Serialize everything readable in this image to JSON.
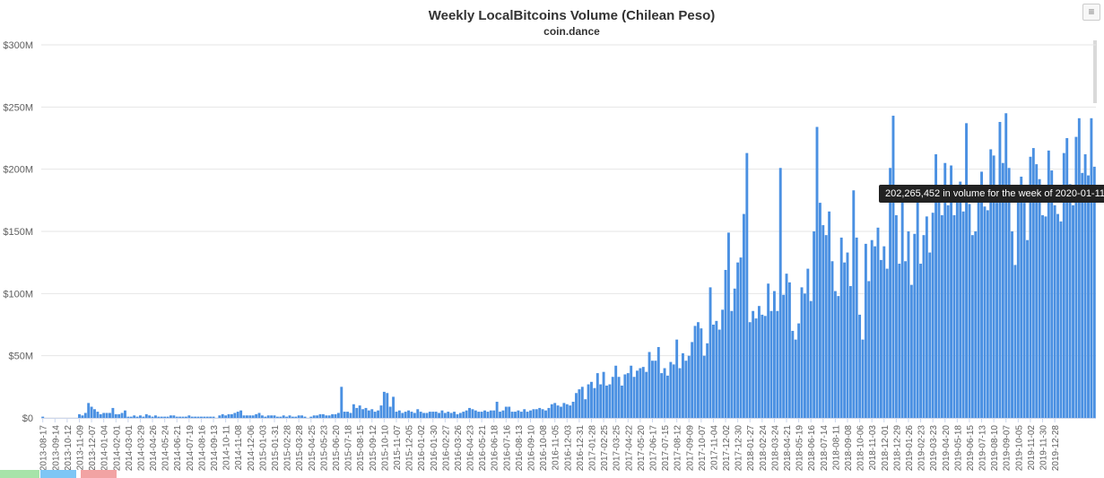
{
  "header": {
    "title": "Weekly LocalBitcoins Volume (Chilean Peso)",
    "subtitle": "coin.dance",
    "menu_glyph": "≡"
  },
  "tooltip": {
    "text": "202,265,452 in volume for the week of 2020-01-11"
  },
  "colors": {
    "bar": "#4a90e2",
    "grid": "#e6e6e6",
    "axis_text": "#606060",
    "tooltip_bg": "#222222",
    "legend_green": "#a7e3a9",
    "legend_blue": "#7ec6f5",
    "legend_red": "#f2a3a3"
  },
  "chart_data": {
    "type": "bar",
    "title": "Weekly LocalBitcoins Volume (Chilean Peso)",
    "subtitle": "coin.dance",
    "xlabel": "",
    "ylabel": "",
    "ylim": [
      0,
      300000000
    ],
    "y_ticks": [
      "$0",
      "$50M",
      "$100M",
      "$150M",
      "$200M",
      "$250M",
      "$300M"
    ],
    "grid": true,
    "week_step_days": 7,
    "x_tick_labels": [
      "2013-08-17",
      "2013-09-14",
      "2013-10-12",
      "2013-11-09",
      "2013-12-07",
      "2014-01-04",
      "2014-02-01",
      "2014-03-01",
      "2014-03-29",
      "2014-04-26",
      "2014-05-24",
      "2014-06-21",
      "2014-07-19",
      "2014-08-16",
      "2014-09-13",
      "2014-10-11",
      "2014-11-08",
      "2014-12-06",
      "2015-01-03",
      "2015-01-31",
      "2015-02-28",
      "2015-03-28",
      "2015-04-25",
      "2015-05-23",
      "2015-06-20",
      "2015-07-18",
      "2015-08-15",
      "2015-09-12",
      "2015-10-10",
      "2015-11-07",
      "2015-12-05",
      "2016-01-02",
      "2016-01-30",
      "2016-02-27",
      "2016-03-26",
      "2016-04-23",
      "2016-05-21",
      "2016-06-18",
      "2016-07-16",
      "2016-08-13",
      "2016-09-10",
      "2016-10-08",
      "2016-11-05",
      "2016-12-03",
      "2016-12-31",
      "2017-01-28",
      "2017-02-25",
      "2017-03-25",
      "2017-04-22",
      "2017-05-20",
      "2017-06-17",
      "2017-07-15",
      "2017-08-12",
      "2017-09-09",
      "2017-10-07",
      "2017-11-04",
      "2017-12-02",
      "2017-12-30",
      "2018-01-27",
      "2018-02-24",
      "2018-03-24",
      "2018-04-21",
      "2018-05-19",
      "2018-06-16",
      "2018-07-14",
      "2018-08-11",
      "2018-09-08",
      "2018-10-06",
      "2018-11-03",
      "2018-12-01",
      "2018-12-29",
      "2019-01-26",
      "2019-02-23",
      "2019-03-23",
      "2019-04-20",
      "2019-05-18",
      "2019-06-15",
      "2019-07-13",
      "2019-08-10",
      "2019-09-07",
      "2019-10-05",
      "2019-11-02",
      "2019-11-30",
      "2019-12-28"
    ],
    "series": [
      {
        "start_week": "2013-08-17",
        "values_millions": [
          1,
          0,
          0,
          0,
          0,
          0,
          0,
          0,
          0,
          0,
          0,
          0,
          3,
          2,
          4,
          12,
          9,
          7,
          5,
          3,
          4,
          4,
          4,
          8,
          3,
          3,
          4,
          6,
          1,
          1,
          2,
          1,
          2,
          1,
          3,
          2,
          1,
          2,
          1,
          1,
          1,
          1,
          2,
          2,
          1,
          1,
          1,
          1,
          2,
          1,
          1,
          1,
          1,
          1,
          1,
          1,
          1,
          0,
          2,
          3,
          2,
          3,
          3,
          4,
          5,
          6,
          2,
          2,
          2,
          2,
          3,
          4,
          2,
          1,
          2,
          2,
          2,
          1,
          1,
          2,
          1,
          2,
          1,
          1,
          2,
          2,
          1,
          0,
          1,
          2,
          2,
          3,
          3,
          2,
          2,
          3,
          3,
          4,
          25,
          5,
          5,
          4,
          11,
          8,
          10,
          7,
          8,
          6,
          7,
          5,
          6,
          10,
          21,
          20,
          9,
          17,
          5,
          6,
          4,
          5,
          6,
          5,
          4,
          7,
          5,
          4,
          4,
          5,
          5,
          5,
          4,
          6,
          4,
          5,
          4,
          5,
          3,
          4,
          5,
          6,
          8,
          7,
          6,
          5,
          5,
          6,
          5,
          6,
          6,
          13,
          5,
          6,
          9,
          9,
          5,
          5,
          6,
          5,
          7,
          5,
          6,
          7,
          7,
          8,
          7,
          6,
          8,
          11,
          12,
          10,
          9,
          12,
          11,
          10,
          13,
          20,
          23,
          25,
          15,
          27,
          29,
          24,
          36,
          27,
          37,
          26,
          27,
          33,
          42,
          33,
          26,
          35,
          36,
          42,
          33,
          38,
          40,
          41,
          37,
          53,
          46,
          46,
          57,
          36,
          40,
          34,
          45,
          43,
          63,
          40,
          52,
          46,
          50,
          61,
          74,
          77,
          72,
          50,
          60,
          105,
          75,
          78,
          71,
          87,
          119,
          149,
          86,
          104,
          125,
          129,
          164,
          213,
          77,
          86,
          80,
          90,
          83,
          82,
          108,
          86,
          102,
          86,
          201,
          99,
          116,
          109,
          70,
          63,
          76,
          105,
          100,
          120,
          94,
          150,
          234,
          173,
          155,
          147,
          166,
          126,
          102,
          98,
          145,
          125,
          133,
          106,
          183,
          145,
          83,
          63,
          140,
          110,
          143,
          138,
          153,
          127,
          138,
          120,
          201,
          243,
          163,
          124,
          185,
          126,
          150,
          107,
          148,
          174,
          124,
          147,
          162,
          133,
          165,
          212,
          174,
          163,
          205,
          171,
          203,
          163,
          174,
          190,
          166,
          237,
          172,
          147,
          150,
          184,
          198,
          170,
          167,
          216,
          211,
          173,
          238,
          205,
          245,
          201,
          150,
          123,
          176,
          194,
          173,
          143,
          210,
          217,
          204,
          192,
          163,
          162,
          215,
          199,
          171,
          164,
          158,
          213,
          225,
          188,
          171,
          226,
          241,
          197,
          212,
          195,
          241,
          202
        ]
      }
    ]
  }
}
